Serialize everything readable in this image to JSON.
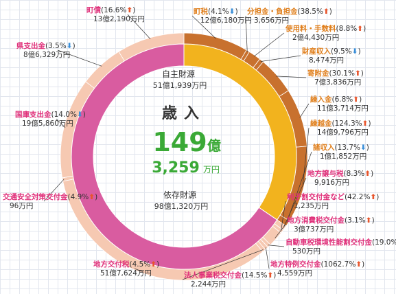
{
  "chart_data": {
    "type": "pie",
    "center": {
      "title": "歳入",
      "total_big": "149",
      "total_big_unit": "億",
      "total_small": "3,259",
      "total_small_unit": "万円"
    },
    "groups": [
      {
        "name": "自主財源",
        "amount": "51億1,939万円",
        "value_oku": 51.19
      },
      {
        "name": "依存財源",
        "amount": "98億1,320万円",
        "value_oku": 98.13
      }
    ],
    "slices": [
      {
        "group": "自主財源",
        "name": "町税",
        "change": "4.1%",
        "direction": "down",
        "amount": "12億6,180万円",
        "value_oku": 12.618
      },
      {
        "group": "自主財源",
        "name": "分担金・負担金",
        "change": "38.5%",
        "direction": "up",
        "amount": "3,656万円",
        "value_oku": 0.3656
      },
      {
        "group": "自主財源",
        "name": "使用料・手数料",
        "change": "8.8%",
        "direction": "up",
        "amount": "2億4,430万円",
        "value_oku": 2.443
      },
      {
        "group": "自主財源",
        "name": "財産収入",
        "change": "9.5%",
        "direction": "down",
        "amount": "8,474万円",
        "value_oku": 0.8474
      },
      {
        "group": "自主財源",
        "name": "寄附金",
        "change": "30.1%",
        "direction": "up",
        "amount": "7億3,836万円",
        "value_oku": 7.3836
      },
      {
        "group": "自主財源",
        "name": "繰入金",
        "change": "6.8%",
        "direction": "up",
        "amount": "11億3,714万円",
        "value_oku": 11.3714
      },
      {
        "group": "自主財源",
        "name": "繰越金",
        "change": "124.3%",
        "direction": "up",
        "amount": "14億9,796万円",
        "value_oku": 14.9796
      },
      {
        "group": "自主財源",
        "name": "諸収入",
        "change": "13.7%",
        "direction": "down",
        "amount": "1億1,852万円",
        "value_oku": 1.1852
      },
      {
        "group": "依存財源",
        "name": "地方譲与税",
        "change": "8.3%",
        "direction": "up",
        "amount": "9,916万円",
        "value_oku": 0.9916
      },
      {
        "group": "依存財源",
        "name": "利子割交付金など",
        "change": "42.2%",
        "direction": "up",
        "amount": "1,235万円",
        "value_oku": 0.1235
      },
      {
        "group": "依存財源",
        "name": "地方消費税交付金",
        "change": "3.1%",
        "direction": "up",
        "amount": "3億737万円",
        "value_oku": 3.0737
      },
      {
        "group": "依存財源",
        "name": "自動車税環境性能割交付金",
        "change": "19.0%",
        "direction": "up",
        "amount": "530万円",
        "value_oku": 0.053
      },
      {
        "group": "依存財源",
        "name": "地方特例交付金",
        "change": "1062.7%",
        "direction": "up",
        "amount": "4,559万円",
        "value_oku": 0.4559
      },
      {
        "group": "依存財源",
        "name": "法人事業税交付金",
        "change": "14.5%",
        "direction": "up",
        "amount": "2,244万円",
        "value_oku": 0.2244
      },
      {
        "group": "依存財源",
        "name": "地方交付税",
        "change": "4.5%",
        "direction": "up",
        "amount": "51億7,624万円",
        "value_oku": 51.7624
      },
      {
        "group": "依存財源",
        "name": "交通安全対策交付金",
        "change": "4.9%",
        "direction": "up",
        "amount": "96万円",
        "value_oku": 0.0096
      },
      {
        "group": "依存財源",
        "name": "国庫支出金",
        "change": "14.0%",
        "direction": "down",
        "amount": "19億5,860万円",
        "value_oku": 19.586
      },
      {
        "group": "依存財源",
        "name": "県支出金",
        "change": "3.5%",
        "direction": "down",
        "amount": "8億6,329万円",
        "value_oku": 8.6329
      },
      {
        "group": "依存財源",
        "name": "町債",
        "change": "16.6%",
        "direction": "up",
        "amount": "13億2,190万円",
        "value_oku": 13.219
      }
    ],
    "colors": {
      "own_outer": "#c8712e",
      "own_inner": "#f2b31e",
      "dep_outer": "#f6c9b2",
      "dep_inner": "#d95ca0",
      "label_pink": "#e0307a",
      "label_orange": "#e07f1c",
      "up_arrow": "#e8542a",
      "down_arrow": "#3a8fd9",
      "center_green": "#3aa936"
    }
  }
}
